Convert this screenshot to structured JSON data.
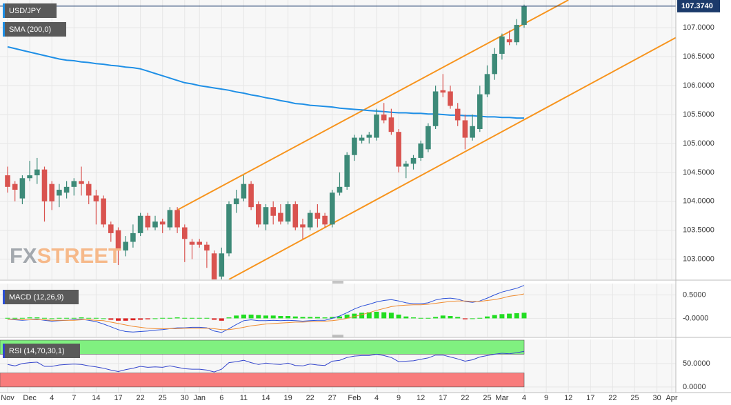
{
  "chart_data": [
    {
      "type": "candlestick",
      "title": "USD/JPY",
      "categories": [
        "Nov",
        null,
        null,
        "Dec",
        null,
        null,
        "4",
        null,
        null,
        "7",
        null,
        null,
        "14",
        null,
        null,
        "17",
        null,
        null,
        "22",
        null,
        null,
        "25",
        null,
        null,
        "30",
        null,
        "Jan",
        null,
        null,
        "6",
        null,
        null,
        "11",
        null,
        null,
        "14",
        null,
        null,
        "19",
        null,
        null,
        "22",
        null,
        null,
        "27",
        null,
        null,
        "Feb",
        null,
        null,
        "4",
        null,
        null,
        "9",
        null,
        null,
        "12",
        null,
        null,
        "17",
        null,
        null,
        "22",
        null,
        null,
        "25",
        null,
        "Mar",
        null,
        null,
        "4",
        null,
        null,
        "9",
        null,
        null,
        "12",
        null,
        null,
        "17",
        null,
        null,
        "22",
        null,
        null,
        "25",
        null,
        null,
        "30",
        null,
        "Apr"
      ],
      "open": [
        104.45,
        104.3,
        104.05,
        104.4,
        104.45,
        104.55,
        104.3,
        104.1,
        104.15,
        104.25,
        104.35,
        104.3,
        104.1,
        104.05,
        103.6,
        103.5,
        103.15,
        103.3,
        103.45,
        103.75,
        103.55,
        103.65,
        103.55,
        103.85,
        103.55,
        103.3,
        103.3,
        103.25,
        103.1,
        102.7,
        103.1,
        103.95,
        104.05,
        104.3,
        103.95,
        103.6,
        103.9,
        103.8,
        103.65,
        103.95,
        103.6,
        103.55,
        103.8,
        103.75,
        103.6,
        104.15,
        104.25,
        104.8,
        105.05,
        105.1,
        105.1,
        105.5,
        105.45,
        105.2,
        104.6,
        104.65,
        104.75,
        104.9,
        105.3,
        105.92,
        105.9,
        105.6,
        105.4,
        105.1,
        105.25,
        105.85,
        106.2,
        106.55,
        106.8,
        106.75,
        107.05,
        null,
        null,
        null,
        null,
        null,
        null,
        null,
        null,
        null,
        null,
        null,
        null,
        null,
        null,
        null,
        null,
        null,
        null,
        null,
        null
      ],
      "high": [
        104.6,
        104.35,
        104.45,
        104.7,
        104.75,
        104.6,
        104.35,
        104.3,
        104.35,
        104.4,
        104.6,
        104.35,
        104.2,
        104.1,
        103.65,
        103.55,
        103.4,
        103.6,
        103.8,
        103.8,
        103.75,
        103.7,
        103.9,
        103.9,
        103.6,
        103.35,
        103.35,
        103.3,
        103.15,
        103.2,
        104.0,
        104.2,
        104.45,
        104.35,
        104.0,
        103.95,
        104.0,
        103.95,
        104.0,
        104.0,
        103.7,
        103.85,
        103.95,
        103.8,
        104.2,
        104.5,
        104.85,
        105.15,
        105.15,
        105.2,
        105.6,
        105.7,
        105.6,
        105.25,
        104.7,
        104.8,
        105.05,
        105.35,
        106.0,
        106.2,
        106.0,
        105.7,
        105.5,
        105.5,
        106.0,
        106.35,
        106.65,
        106.9,
        106.95,
        107.15,
        107.4,
        null,
        null,
        null,
        null,
        null,
        null,
        null,
        null,
        null,
        null,
        null,
        null,
        null,
        null,
        null,
        null,
        null,
        null,
        null,
        null
      ],
      "low": [
        104.15,
        104.0,
        103.95,
        104.35,
        104.3,
        103.65,
        103.85,
        103.9,
        104.05,
        104.1,
        104.1,
        103.95,
        103.6,
        103.55,
        103.3,
        102.9,
        103.05,
        103.2,
        103.4,
        103.5,
        103.5,
        103.45,
        103.5,
        103.45,
        102.95,
        103.0,
        103.2,
        102.85,
        102.6,
        102.65,
        103.05,
        103.8,
        104.0,
        103.85,
        103.55,
        103.5,
        103.6,
        103.6,
        103.6,
        103.5,
        103.35,
        103.5,
        103.55,
        103.55,
        103.55,
        104.1,
        104.2,
        104.7,
        105.0,
        105.0,
        105.05,
        105.35,
        105.15,
        104.5,
        104.4,
        104.55,
        104.7,
        104.85,
        105.25,
        105.8,
        105.6,
        105.3,
        104.9,
        105.05,
        105.2,
        105.8,
        106.1,
        106.45,
        106.7,
        106.7,
        107.0,
        null,
        null,
        null,
        null,
        null,
        null,
        null,
        null,
        null,
        null,
        null,
        null,
        null,
        null,
        null,
        null,
        null,
        null,
        null,
        null
      ],
      "close": [
        104.25,
        104.2,
        104.4,
        104.45,
        104.55,
        104.0,
        104.0,
        104.2,
        104.25,
        104.35,
        104.3,
        104.1,
        104.0,
        103.6,
        103.45,
        103.15,
        103.3,
        103.45,
        103.75,
        103.55,
        103.65,
        103.6,
        103.85,
        103.55,
        103.35,
        103.25,
        103.25,
        103.15,
        102.65,
        103.1,
        103.95,
        104.05,
        104.3,
        103.9,
        103.6,
        103.9,
        103.75,
        103.65,
        103.95,
        103.55,
        103.55,
        103.8,
        103.7,
        103.6,
        104.15,
        104.25,
        104.8,
        105.1,
        105.1,
        105.15,
        105.5,
        105.4,
        105.2,
        104.6,
        104.65,
        104.75,
        105.0,
        105.3,
        105.9,
        105.88,
        105.65,
        105.4,
        105.1,
        105.3,
        105.85,
        106.2,
        106.55,
        106.85,
        106.75,
        107.05,
        107.374,
        null,
        null,
        null,
        null,
        null,
        null,
        null,
        null,
        null,
        null,
        null,
        null,
        null,
        null,
        null,
        null,
        null,
        null,
        null,
        null
      ],
      "up_color": "#3d8a78",
      "down_color": "#d9534f",
      "ylim": [
        102.65,
        107.48
      ],
      "yticks": [
        {
          "value": 103.0,
          "label": "103.0000"
        },
        {
          "value": 103.5,
          "label": "103.5000"
        },
        {
          "value": 104.0,
          "label": "104.0000"
        },
        {
          "value": 104.5,
          "label": "104.5000"
        },
        {
          "value": 105.0,
          "label": "105.0000"
        },
        {
          "value": 105.5,
          "label": "105.5000"
        },
        {
          "value": 106.0,
          "label": "106.0000"
        },
        {
          "value": 106.5,
          "label": "106.5000"
        },
        {
          "value": 107.0,
          "label": "107.0000"
        }
      ],
      "last_price": {
        "value": 107.374,
        "label": "107.3740"
      },
      "overlays": [
        {
          "name": "SMA (200,0)",
          "color": "#1e8fe6",
          "values": [
            106.67,
            106.64,
            106.61,
            106.58,
            106.55,
            106.52,
            106.49,
            106.46,
            106.44,
            106.43,
            106.41,
            106.4,
            106.38,
            106.37,
            106.35,
            106.34,
            106.32,
            106.31,
            106.29,
            106.25,
            106.21,
            106.17,
            106.13,
            106.09,
            106.05,
            106.03,
            106.0,
            105.98,
            105.96,
            105.94,
            105.92,
            105.89,
            105.87,
            105.84,
            105.82,
            105.79,
            105.77,
            105.74,
            105.72,
            105.69,
            105.68,
            105.66,
            105.65,
            105.64,
            105.63,
            105.61,
            105.6,
            105.59,
            105.58,
            105.57,
            105.56,
            105.55,
            105.54,
            105.53,
            105.53,
            105.52,
            105.52,
            105.51,
            105.51,
            105.5,
            105.49,
            105.49,
            105.48,
            105.48,
            105.47,
            105.46,
            105.46,
            105.45,
            105.45,
            105.44,
            105.44,
            null,
            null,
            null,
            null,
            null,
            null,
            null,
            null,
            null,
            null,
            null,
            null,
            null,
            null,
            null,
            null,
            null,
            null,
            null,
            null
          ]
        }
      ],
      "trend_lines": [
        {
          "color": "#f7941d",
          "x": [
            23,
            76
          ],
          "y": [
            103.85,
            107.48
          ]
        },
        {
          "color": "#f7941d",
          "x": [
            30,
            91
          ],
          "y": [
            102.65,
            106.86
          ]
        }
      ],
      "logo": [
        "FX",
        "STREET"
      ]
    },
    {
      "type": "macd",
      "title": "MACD (12,26,9)",
      "ylim": [
        -0.39,
        0.74
      ],
      "yticks": [
        {
          "value": 0.5,
          "label": "0.5000"
        },
        {
          "value": 0,
          "label": "-0.0000"
        }
      ],
      "series": [
        {
          "color": "#2b4fd8",
          "values": [
            -0.02,
            -0.03,
            -0.04,
            -0.03,
            -0.02,
            -0.04,
            -0.06,
            -0.05,
            -0.04,
            -0.03,
            -0.02,
            -0.04,
            -0.07,
            -0.12,
            -0.18,
            -0.24,
            -0.28,
            -0.29,
            -0.28,
            -0.27,
            -0.25,
            -0.24,
            -0.22,
            -0.2,
            -0.2,
            -0.19,
            -0.19,
            -0.2,
            -0.27,
            -0.3,
            -0.22,
            -0.13,
            -0.05,
            -0.03,
            -0.05,
            -0.05,
            -0.04,
            -0.05,
            -0.04,
            -0.05,
            -0.06,
            -0.05,
            -0.04,
            -0.04,
            0.0,
            0.05,
            0.12,
            0.2,
            0.26,
            0.3,
            0.35,
            0.38,
            0.4,
            0.37,
            0.33,
            0.31,
            0.31,
            0.33,
            0.39,
            0.42,
            0.43,
            0.41,
            0.36,
            0.34,
            0.37,
            0.43,
            0.5,
            0.56,
            0.6,
            0.64,
            0.7,
            null,
            null,
            null,
            null,
            null,
            null,
            null,
            null,
            null,
            null,
            null,
            null,
            null,
            null,
            null,
            null,
            null,
            null,
            null,
            null
          ]
        },
        {
          "color": "#f08c30",
          "values": [
            -0.02,
            -0.02,
            -0.03,
            -0.03,
            -0.03,
            -0.03,
            -0.04,
            -0.04,
            -0.04,
            -0.04,
            -0.03,
            -0.03,
            -0.04,
            -0.05,
            -0.08,
            -0.11,
            -0.14,
            -0.17,
            -0.19,
            -0.21,
            -0.22,
            -0.22,
            -0.22,
            -0.22,
            -0.21,
            -0.21,
            -0.21,
            -0.21,
            -0.22,
            -0.24,
            -0.24,
            -0.22,
            -0.19,
            -0.16,
            -0.14,
            -0.12,
            -0.11,
            -0.1,
            -0.09,
            -0.08,
            -0.08,
            -0.07,
            -0.07,
            -0.06,
            -0.05,
            -0.03,
            0.0,
            0.04,
            0.08,
            0.12,
            0.17,
            0.21,
            0.25,
            0.27,
            0.28,
            0.29,
            0.29,
            0.3,
            0.32,
            0.34,
            0.36,
            0.37,
            0.37,
            0.36,
            0.36,
            0.38,
            0.4,
            0.43,
            0.47,
            0.49,
            0.52,
            null,
            null,
            null,
            null,
            null,
            null,
            null,
            null,
            null,
            null,
            null,
            null,
            null,
            null,
            null,
            null,
            null,
            null,
            null,
            null
          ]
        }
      ],
      "histogram": {
        "up_color": "#22dd22",
        "down_color": "#dd2222",
        "values": [
          0.01,
          0.01,
          0.01,
          0.02,
          0.02,
          0.01,
          0.0,
          0.01,
          0.01,
          0.01,
          0.02,
          0.01,
          0.01,
          0.0,
          -0.03,
          -0.05,
          -0.05,
          -0.04,
          -0.03,
          -0.02,
          0.0,
          0.01,
          0.01,
          0.02,
          0.01,
          0.01,
          0.01,
          0.01,
          -0.03,
          -0.05,
          0.02,
          0.06,
          0.08,
          0.08,
          0.07,
          0.06,
          0.06,
          0.05,
          0.05,
          0.04,
          0.03,
          0.03,
          0.03,
          0.02,
          0.03,
          0.04,
          0.08,
          0.1,
          0.12,
          0.13,
          0.14,
          0.13,
          0.12,
          0.08,
          0.04,
          0.02,
          0.01,
          0.01,
          0.03,
          0.06,
          0.05,
          0.03,
          -0.02,
          0.0,
          0.01,
          0.04,
          0.07,
          0.09,
          0.1,
          0.11,
          0.12,
          null,
          null,
          null,
          null,
          null,
          null,
          null,
          null,
          null,
          null,
          null,
          null,
          null,
          null,
          null,
          null,
          null,
          null,
          null,
          null
        ]
      }
    },
    {
      "type": "rsi",
      "title": "RSI (14,70,30,1)",
      "ylim": [
        -12,
        101.5
      ],
      "yticks": [
        {
          "value": 50,
          "label": "50.0000"
        },
        {
          "value": 0,
          "label": "0.0000"
        }
      ],
      "color": "#3344cc",
      "bands": [
        {
          "from": 70,
          "to": 100,
          "color": "#80f080"
        },
        {
          "from": 0,
          "to": 30,
          "color": "#f87c7c"
        }
      ],
      "values": [
        48,
        45,
        50,
        52,
        53,
        44,
        44,
        47,
        48,
        49,
        48,
        45,
        43,
        40,
        36,
        33,
        37,
        40,
        44,
        42,
        43,
        42,
        45,
        42,
        39,
        38,
        38,
        36,
        32,
        38,
        52,
        54,
        57,
        52,
        48,
        51,
        49,
        48,
        51,
        46,
        45,
        49,
        47,
        46,
        55,
        57,
        63,
        66,
        67,
        67,
        70,
        67,
        63,
        54,
        55,
        56,
        59,
        62,
        68,
        68,
        64,
        60,
        55,
        58,
        64,
        67,
        70,
        72,
        71,
        73,
        76,
        null,
        null,
        null,
        null,
        null,
        null,
        null,
        null,
        null,
        null,
        null,
        null,
        null,
        null,
        null,
        null,
        null,
        null,
        null,
        null
      ]
    }
  ]
}
